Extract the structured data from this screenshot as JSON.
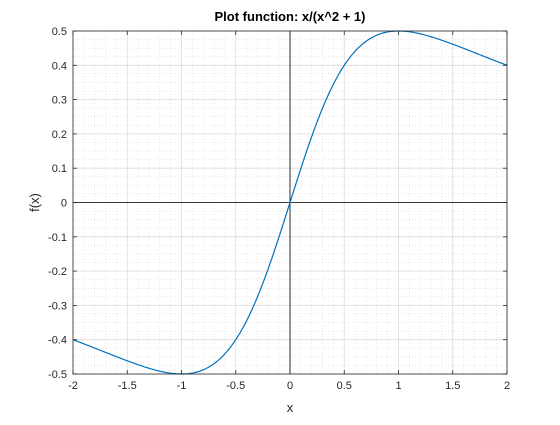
{
  "chart_data": {
    "type": "line",
    "title": "Plot function: x/(x^2 + 1)",
    "xlabel": "x",
    "ylabel": "f(x)",
    "xlim": [
      -2,
      2
    ],
    "ylim": [
      -0.5,
      0.5
    ],
    "grid": true,
    "minor_grid": true,
    "x_ticks": [
      -2,
      -1.5,
      -1,
      -0.5,
      0,
      0.5,
      1,
      1.5,
      2
    ],
    "x_tick_labels": [
      "-2",
      "-1.5",
      "-1",
      "-0.5",
      "0",
      "0.5",
      "1",
      "1.5",
      "2"
    ],
    "y_ticks": [
      -0.5,
      -0.4,
      -0.3,
      -0.2,
      -0.1,
      0,
      0.1,
      0.2,
      0.3,
      0.4,
      0.5
    ],
    "y_tick_labels": [
      "-0.5",
      "-0.4",
      "-0.3",
      "-0.2",
      "-0.1",
      "0",
      "0.1",
      "0.2",
      "0.3",
      "0.4",
      "0.5"
    ],
    "series": [
      {
        "color": "#0072bd",
        "x": [
          -2,
          -1.75,
          -1.5,
          -1.25,
          -1,
          -0.75,
          -0.5,
          -0.25,
          0,
          0.25,
          0.5,
          0.75,
          1,
          1.25,
          1.5,
          1.75,
          2
        ],
        "y": [
          -0.4,
          -0.431,
          -0.462,
          -0.488,
          -0.5,
          -0.48,
          -0.4,
          -0.235,
          0,
          0.235,
          0.4,
          0.48,
          0.5,
          0.488,
          0.462,
          0.431,
          0.4
        ]
      }
    ],
    "reference_lines": [
      {
        "axis": "y",
        "value": 0,
        "color": "#000000"
      },
      {
        "axis": "x",
        "value": 0,
        "color": "#000000"
      }
    ]
  }
}
